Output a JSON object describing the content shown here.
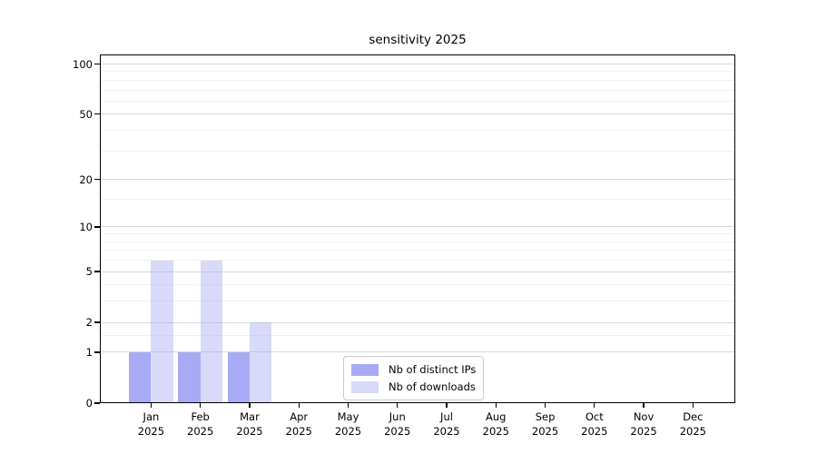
{
  "chart_data": {
    "type": "bar",
    "title": "sensitivity 2025",
    "categories": [
      "Jan",
      "Feb",
      "Mar",
      "Apr",
      "May",
      "Jun",
      "Jul",
      "Aug",
      "Sep",
      "Oct",
      "Nov",
      "Dec"
    ],
    "x_year_label": "2025",
    "series": [
      {
        "name": "Nb of distinct IPs",
        "color": "#a9aaf5",
        "values": [
          1,
          1,
          1,
          0,
          0,
          0,
          0,
          0,
          0,
          0,
          0,
          0
        ]
      },
      {
        "name": "Nb of downloads",
        "color": "rgba(170,171,245,0.45)",
        "values": [
          6,
          6,
          2,
          0,
          0,
          0,
          0,
          0,
          0,
          0,
          0,
          0
        ]
      }
    ],
    "y_axis": {
      "scale": "log1p",
      "major_ticks": [
        0,
        1,
        2,
        5,
        10,
        20,
        50,
        100
      ],
      "minor_gridlines": [
        1.5,
        3,
        4,
        6,
        7,
        8,
        9,
        15,
        30,
        40,
        60,
        70,
        80,
        90
      ],
      "top_value": 114
    },
    "x_axis": {
      "min": -1.04,
      "max": 11.86,
      "bar_width_units": 0.45
    },
    "legend": {
      "position": "lower center"
    },
    "colors": {
      "grid_major": "#d9d9d9",
      "grid_minor": "#f0f0f0",
      "spine": "#000000",
      "background": "#ffffff"
    },
    "grid": "on"
  }
}
